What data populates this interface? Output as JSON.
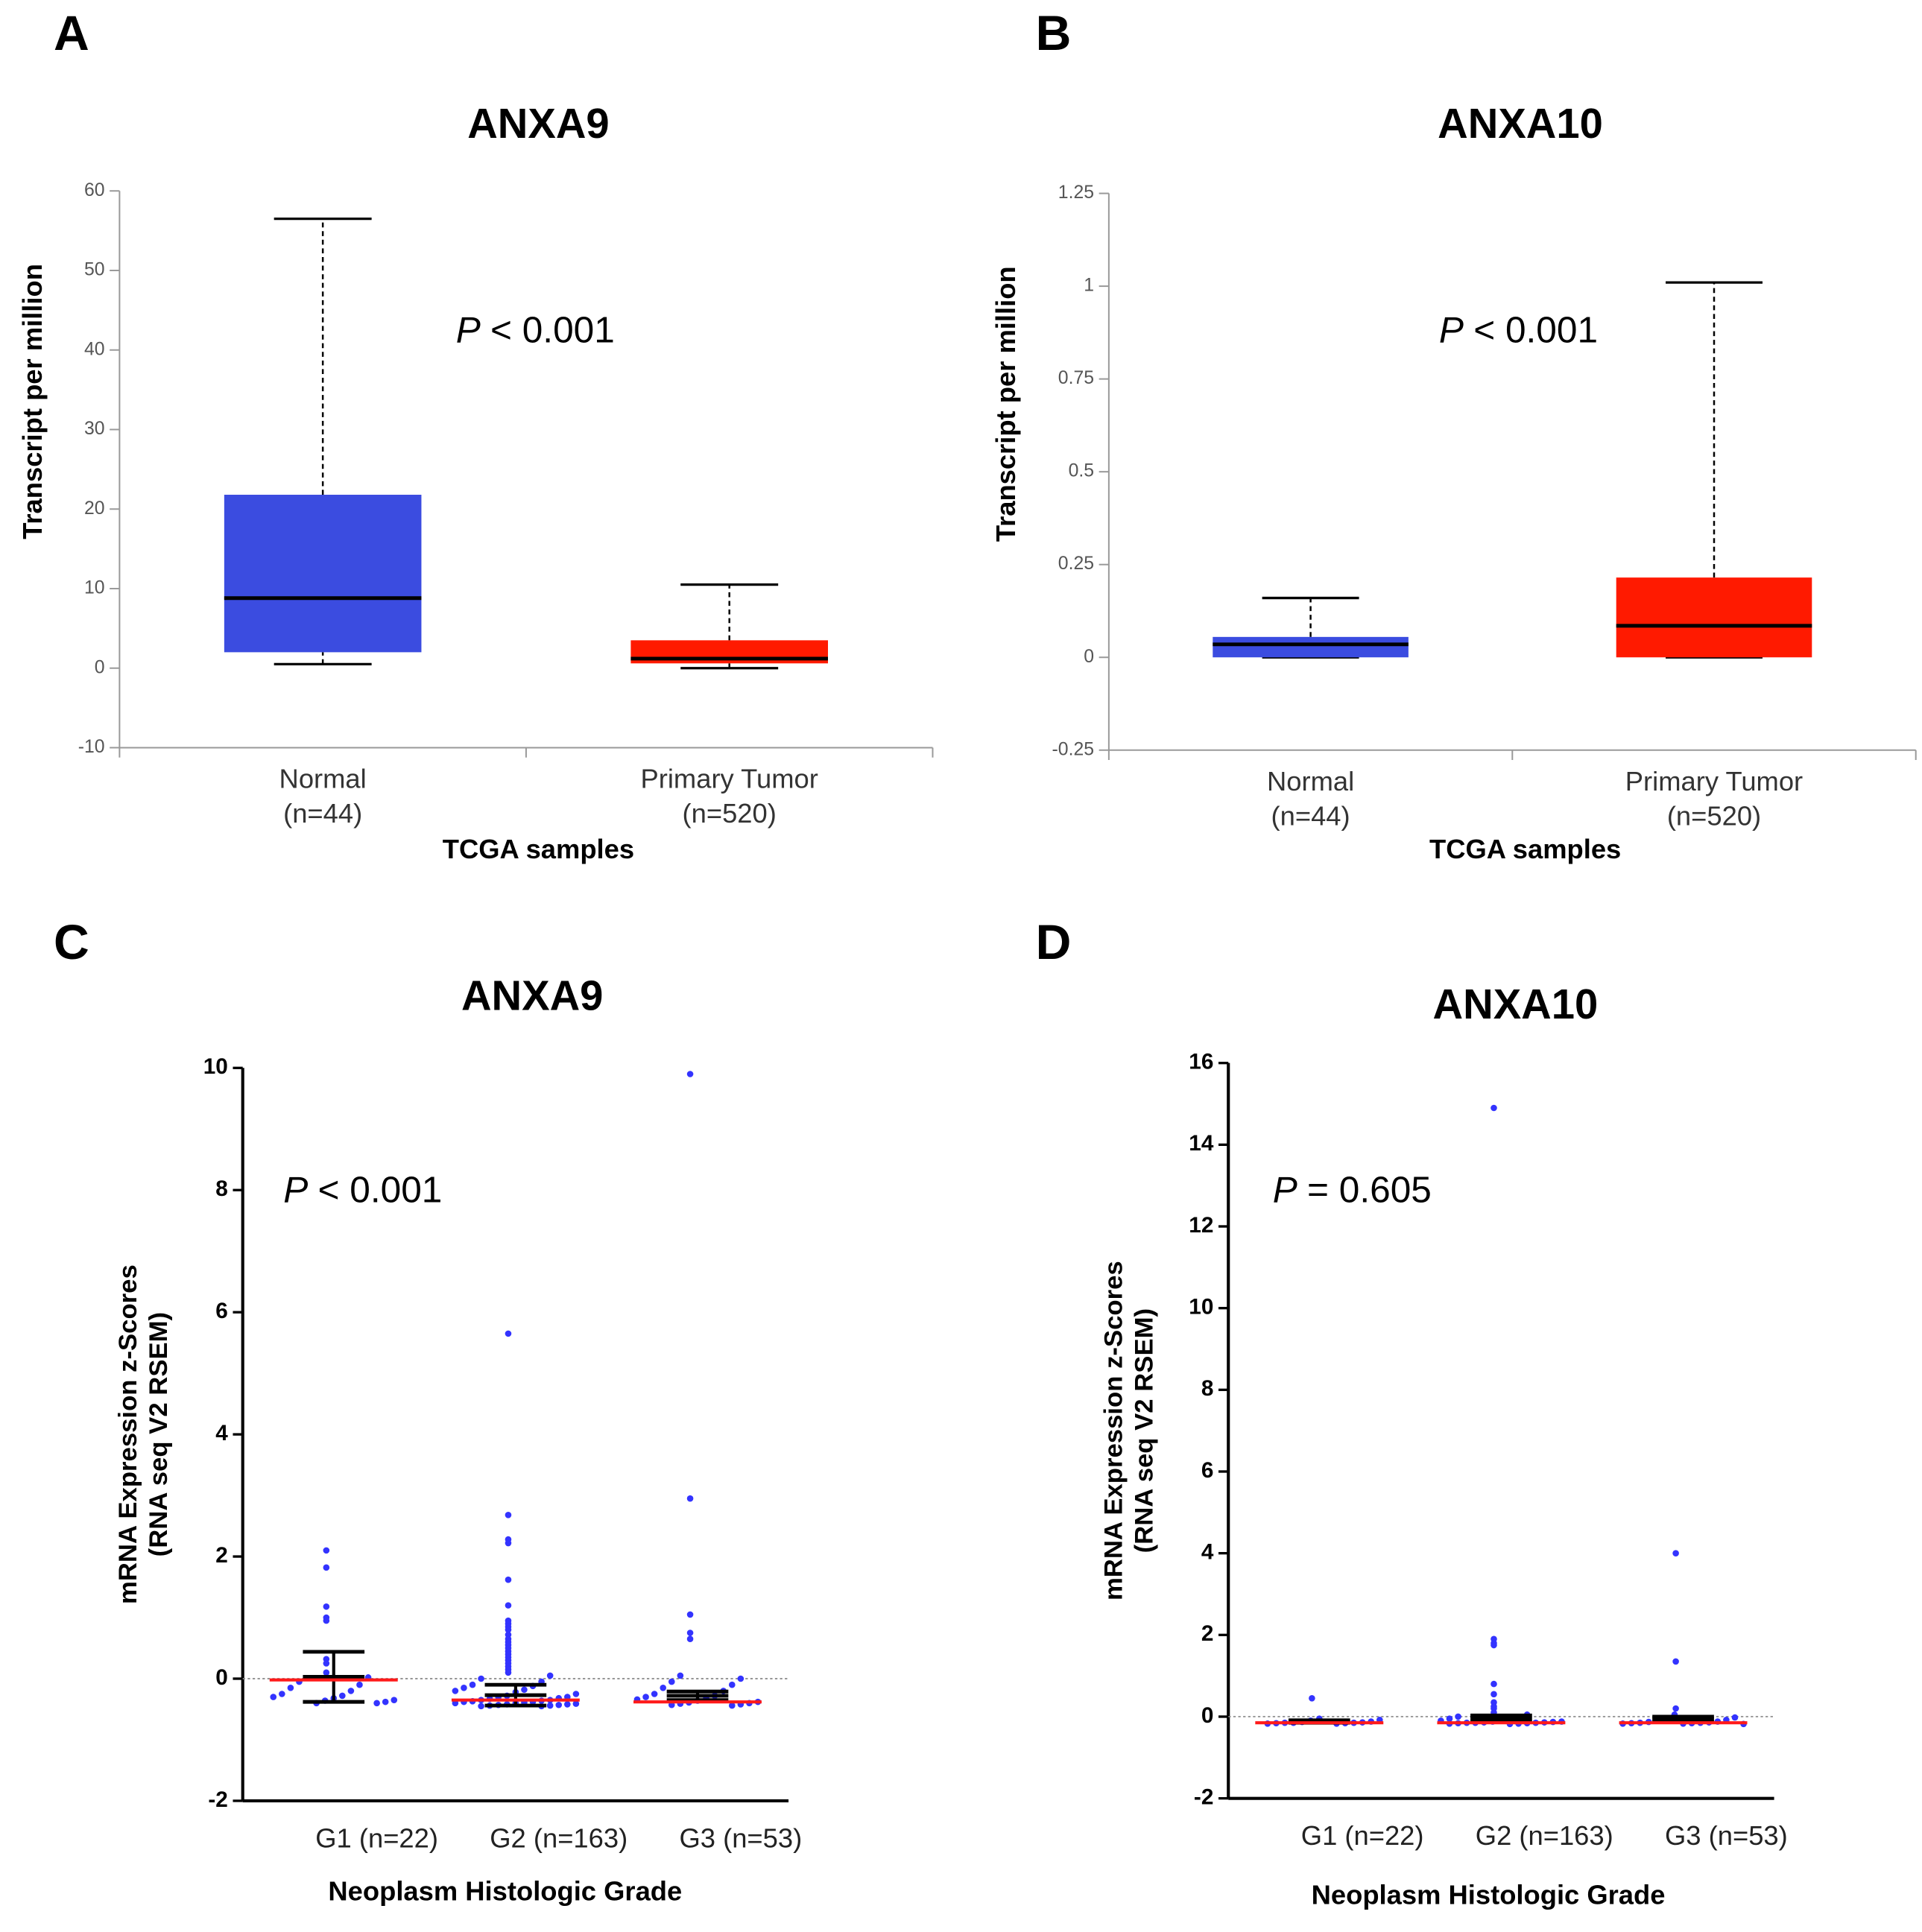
{
  "chart_data": [
    {
      "type": "box",
      "panel_label": "A",
      "title": "ANXA9",
      "ylabel": "Transcript per million",
      "xlabel": "TCGA samples",
      "p_symbol": "P",
      "p_text": "< 0.001",
      "categories": [
        "Normal",
        "Primary Tumor"
      ],
      "n_labels": [
        "(n=44)",
        "(n=520)"
      ],
      "colors": [
        "#3b4ce0",
        "#ff1a00"
      ],
      "stats": [
        {
          "min": 0.5,
          "q1": 2,
          "median": 8.8,
          "q3": 21.8,
          "max": 56.5
        },
        {
          "min": 0,
          "q1": 0.6,
          "median": 1.2,
          "q3": 3.5,
          "max": 10.5
        }
      ],
      "ylim": [
        -10,
        60
      ],
      "yticks": [
        -10,
        0,
        10,
        20,
        30,
        40,
        50,
        60
      ]
    },
    {
      "type": "box",
      "panel_label": "B",
      "title": "ANXA10",
      "ylabel": "Transcript per million",
      "xlabel": "TCGA samples",
      "p_symbol": "P",
      "p_text": "< 0.001",
      "categories": [
        "Normal",
        "Primary Tumor"
      ],
      "n_labels": [
        "(n=44)",
        "(n=520)"
      ],
      "colors": [
        "#3b4ce0",
        "#ff1a00"
      ],
      "stats": [
        {
          "min": 0,
          "q1": 0,
          "median": 0.035,
          "q3": 0.055,
          "max": 0.16
        },
        {
          "min": 0,
          "q1": 0,
          "median": 0.085,
          "q3": 0.215,
          "max": 1.01
        }
      ],
      "ylim": [
        -0.25,
        1.25
      ],
      "yticks": [
        -0.25,
        0,
        0.25,
        0.5,
        0.75,
        1,
        1.25
      ]
    },
    {
      "type": "strip",
      "panel_label": "C",
      "title": "ANXA9",
      "ylabel": [
        "mRNA Expression z-Scores",
        "(RNA seq V2 RSEM)"
      ],
      "xlabel": "Neoplasm Histologic Grade",
      "p_symbol": "P",
      "p_text": "< 0.001",
      "point_color": "#3333ff",
      "median_color": "#ff1a1a",
      "mean_color": "#000000",
      "hline": 0,
      "groups": [
        {
          "label": "G1 (n=22)",
          "median": -0.02,
          "mean": 0.03,
          "error": 0.41,
          "points": [
            2.1,
            1.82,
            1.18,
            1.0,
            0.95,
            0.32,
            0.25,
            0.1,
            0.02,
            -0.05,
            -0.1,
            -0.15,
            -0.2,
            -0.25,
            -0.28,
            -0.3,
            -0.32,
            -0.35,
            -0.36,
            -0.38,
            -0.4,
            -0.4
          ]
        },
        {
          "label": "G2  (n=163)",
          "median": -0.35,
          "mean": -0.27,
          "error": 0.17,
          "points": [
            5.65,
            2.68,
            2.28,
            2.22,
            1.62,
            1.2,
            0.95,
            0.9,
            0.85,
            0.8,
            0.72,
            0.65,
            0.6,
            0.55,
            0.5,
            0.45,
            0.4,
            0.35,
            0.3,
            0.25,
            0.2,
            0.15,
            0.1,
            0.05,
            0,
            -0.05,
            -0.1,
            -0.12,
            -0.15,
            -0.18,
            -0.2,
            -0.22,
            -0.25,
            -0.28,
            -0.3,
            -0.3,
            -0.32,
            -0.33,
            -0.35,
            -0.35,
            -0.36,
            -0.37,
            -0.38,
            -0.38,
            -0.39,
            -0.4,
            -0.4,
            -0.41,
            -0.42,
            -0.42,
            -0.43,
            -0.43,
            -0.44,
            -0.44,
            -0.45,
            -0.45
          ]
        },
        {
          "label": "G3 (n=53)",
          "median": -0.38,
          "mean": -0.28,
          "error": 0.07,
          "points": [
            9.9,
            2.95,
            1.05,
            0.75,
            0.65,
            0.05,
            0,
            -0.05,
            -0.1,
            -0.15,
            -0.2,
            -0.25,
            -0.28,
            -0.3,
            -0.32,
            -0.34,
            -0.36,
            -0.38,
            -0.39,
            -0.4,
            -0.41,
            -0.42,
            -0.43,
            -0.44
          ]
        }
      ],
      "ylim": [
        -2,
        10
      ],
      "yticks": [
        -2,
        0,
        2,
        4,
        6,
        8,
        10
      ]
    },
    {
      "type": "strip",
      "panel_label": "D",
      "title": "ANXA10",
      "ylabel": [
        "mRNA Expression z-Scores",
        "(RNA seq V2 RSEM)"
      ],
      "xlabel": "Neoplasm Histologic Grade",
      "p_symbol": "P",
      "p_text": "= 0.605",
      "point_color": "#3333ff",
      "median_color": "#ff1a1a",
      "mean_color": "#000000",
      "hline": 0,
      "groups": [
        {
          "label": "G1 (n=22)",
          "median": -0.15,
          "mean": -0.12,
          "error": 0.03,
          "points": [
            0.45,
            -0.05,
            -0.08,
            -0.1,
            -0.12,
            -0.13,
            -0.14,
            -0.15,
            -0.15,
            -0.15,
            -0.16,
            -0.16,
            -0.17,
            -0.17
          ]
        },
        {
          "label": "G2  (n=163)",
          "median": -0.15,
          "mean": -0.05,
          "error": 0.08,
          "points": [
            14.9,
            1.9,
            1.8,
            1.75,
            0.8,
            0.55,
            0.35,
            0.25,
            0.2,
            0.1,
            0.05,
            0,
            -0.03,
            -0.05,
            -0.08,
            -0.1,
            -0.1,
            -0.12,
            -0.12,
            -0.13,
            -0.14,
            -0.14,
            -0.15,
            -0.15,
            -0.15,
            -0.16,
            -0.16,
            -0.17,
            -0.17,
            -0.18
          ]
        },
        {
          "label": "G3 (n=53)",
          "median": -0.15,
          "mean": -0.06,
          "error": 0.06,
          "points": [
            4.0,
            1.35,
            0.2,
            0.05,
            -0.02,
            -0.05,
            -0.08,
            -0.1,
            -0.12,
            -0.13,
            -0.14,
            -0.15,
            -0.15,
            -0.16,
            -0.16,
            -0.17,
            -0.17,
            -0.18
          ]
        }
      ],
      "ylim": [
        -2,
        16
      ],
      "yticks": [
        -2,
        0,
        2,
        4,
        6,
        8,
        10,
        12,
        14,
        16
      ]
    }
  ]
}
